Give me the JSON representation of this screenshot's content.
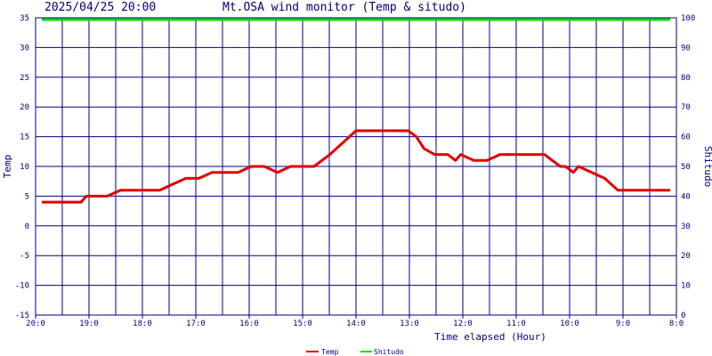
{
  "header": {
    "timestamp": "2025/04/25 20:00",
    "title": "Mt.OSA wind monitor (Temp & situdo)"
  },
  "chart_data": {
    "type": "line",
    "title": "Mt.OSA wind monitor (Temp & situdo)",
    "xlabel": "Time elapsed (Hour)",
    "ylabel": "Temp",
    "y2label": "Shitudo",
    "x_tick_labels": [
      "20:0",
      "19:0",
      "18:0",
      "17:0",
      "16:0",
      "15:0",
      "14:0",
      "13:0",
      "12:0",
      "11:0",
      "10:0",
      "9:0",
      "8:0"
    ],
    "x_direction": "descending",
    "ylim": [
      -15,
      35
    ],
    "y_ticks": [
      35,
      30,
      25,
      20,
      15,
      10,
      5,
      0,
      -5,
      -10,
      -15
    ],
    "y2lim": [
      0,
      100
    ],
    "y2_ticks": [
      100,
      90,
      80,
      70,
      60,
      50,
      40,
      30,
      20,
      10,
      0
    ],
    "grid": true,
    "legend_position": "bottom-center",
    "colors": {
      "background": "#ffffff",
      "grid": "#000080",
      "text": "#000080",
      "temp": "#e00000",
      "shitudo": "#00e000"
    },
    "series": [
      {
        "name": "Temp",
        "axis": "left",
        "color": "#e00000",
        "hours_elapsed": [
          0,
          0.25,
          0.5,
          0.75,
          0.85,
          1,
          1.25,
          1.5,
          1.75,
          2,
          2.25,
          2.5,
          2.75,
          3,
          3.25,
          3.5,
          3.6,
          3.75,
          4,
          4.15,
          4.25,
          4.5,
          4.75,
          5,
          5.2,
          5.5,
          5.75,
          6,
          6.5,
          7,
          7.15,
          7.3,
          7.5,
          7.75,
          7.9,
          8,
          8.25,
          8.5,
          8.75,
          9,
          9.25,
          9.5,
          9.6,
          9.75,
          9.9,
          10,
          10.15,
          10.25,
          10.5,
          10.75,
          11,
          11.25,
          11.5,
          11.75,
          12
        ],
        "values": [
          4,
          4,
          4,
          4,
          5,
          5,
          5,
          6,
          6,
          6,
          6,
          7,
          8,
          8,
          9,
          9,
          9,
          9,
          10,
          10,
          10,
          9,
          10,
          10,
          10,
          12,
          14,
          16,
          16,
          16,
          15,
          13,
          12,
          12,
          11,
          12,
          11,
          11,
          12,
          12,
          12,
          12,
          12,
          11,
          10,
          10,
          9,
          10,
          9,
          8,
          6,
          6,
          6,
          6,
          6
        ]
      },
      {
        "name": "Shitudo",
        "axis": "right",
        "color": "#00e000",
        "hours_elapsed": [
          0,
          12
        ],
        "values": [
          100,
          100
        ]
      }
    ]
  }
}
